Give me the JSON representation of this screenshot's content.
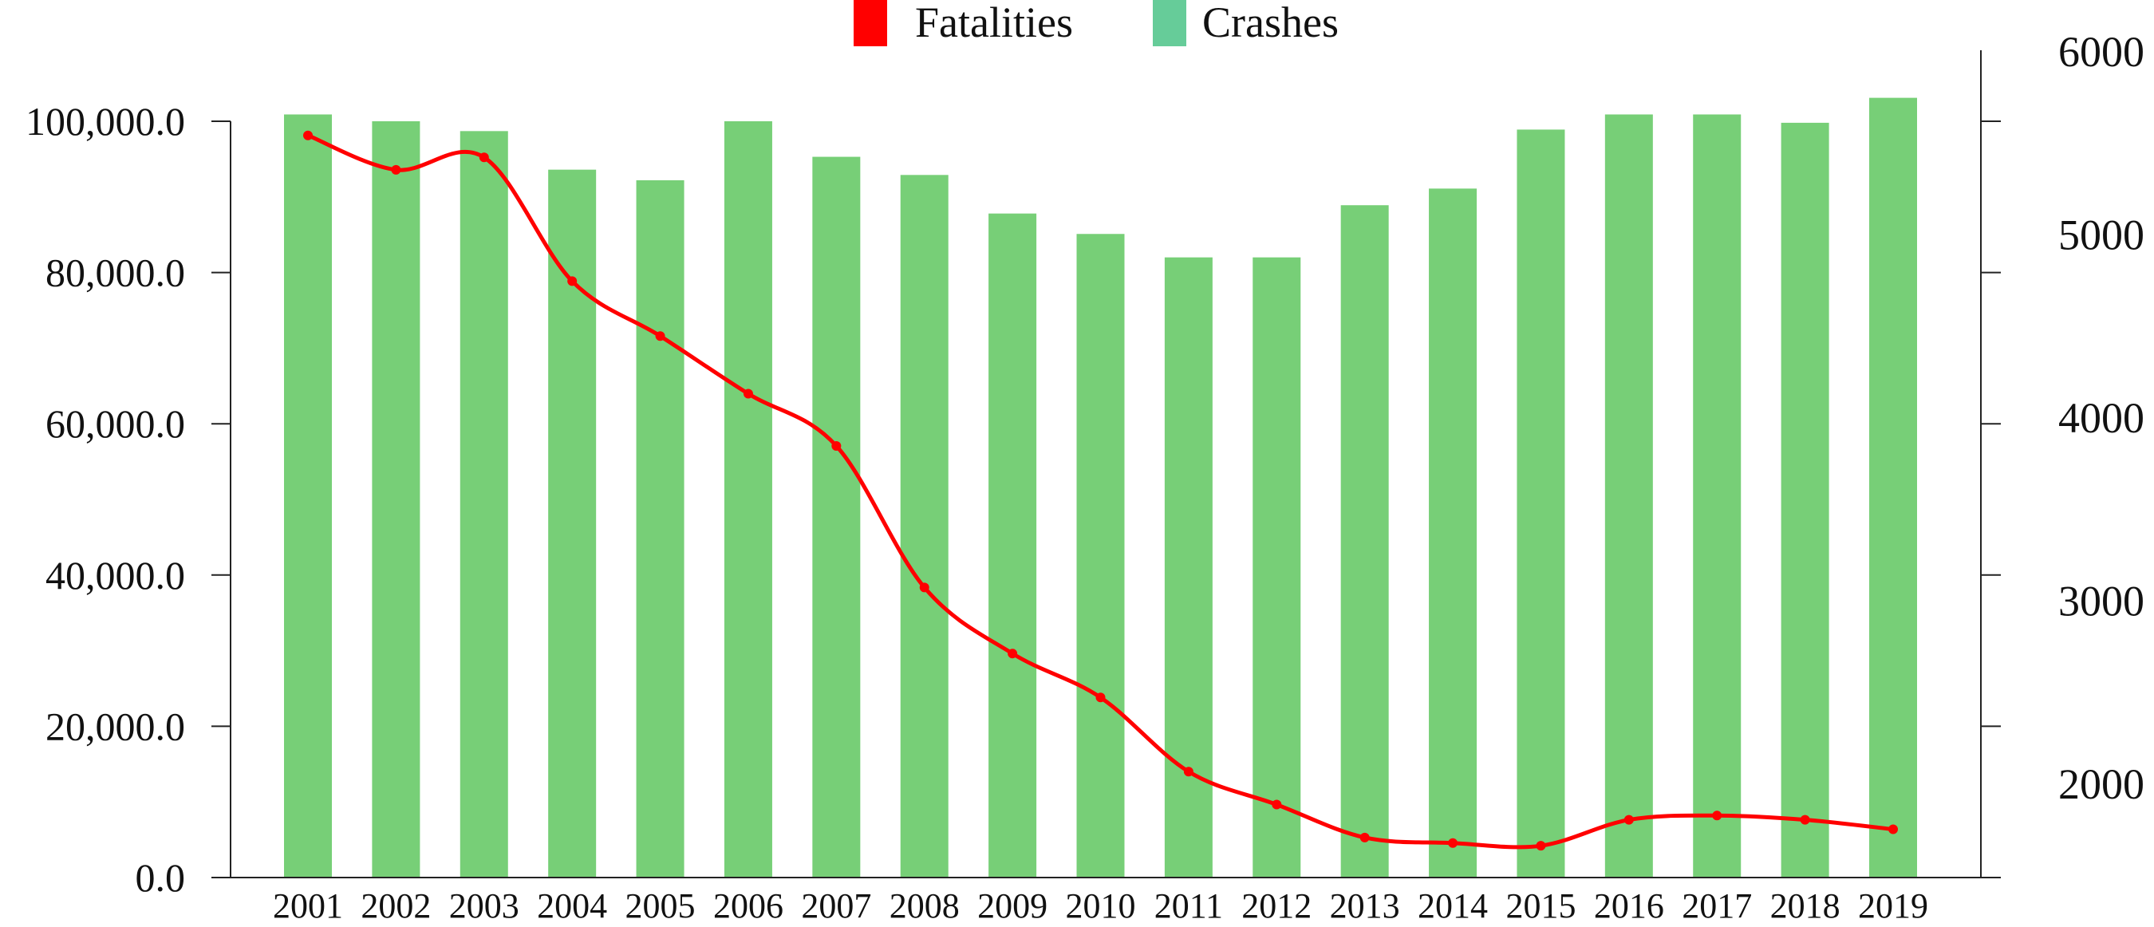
{
  "chart_data": {
    "type": "bar+line",
    "title": "",
    "legend": {
      "position": "top-center",
      "items": [
        {
          "name": "Fatalities",
          "color": "#ff0000"
        },
        {
          "name": "Crashes",
          "color": "#66cc99"
        }
      ]
    },
    "categories": [
      "2001",
      "2002",
      "2003",
      "2004",
      "2005",
      "2006",
      "2007",
      "2008",
      "2009",
      "2010",
      "2011",
      "2012",
      "2013",
      "2014",
      "2015",
      "2016",
      "2017",
      "2018",
      "2019"
    ],
    "series": [
      {
        "name": "Crashes",
        "type": "bar",
        "axis": "left",
        "color": "#77cf77",
        "values": [
          100900,
          100000,
          98700,
          93600,
          92200,
          100000,
          95300,
          92900,
          87800,
          85100,
          82000,
          82000,
          88900,
          91100,
          98900,
          100900,
          100900,
          99800,
          103100
        ]
      },
      {
        "name": "Fatalities",
        "type": "line",
        "axis": "right",
        "color": "#ff0000",
        "values": [
          5535,
          5347,
          5415,
          4739,
          4439,
          4124,
          3839,
          3066,
          2705,
          2465,
          2060,
          1880,
          1700,
          1670,
          1655,
          1797,
          1820,
          1797,
          1745
        ]
      }
    ],
    "left_axis": {
      "ylim": [
        0,
        100000
      ],
      "ticks": [
        "0.0",
        "20,000.0",
        "40,000.0",
        "60,000.0",
        "80,000.0",
        "100,000.0"
      ]
    },
    "right_axis": {
      "ylim": [
        1480,
        6000
      ],
      "ticks": [
        "2000",
        "3000",
        "4000",
        "5000",
        "6000"
      ]
    },
    "grid": false
  }
}
